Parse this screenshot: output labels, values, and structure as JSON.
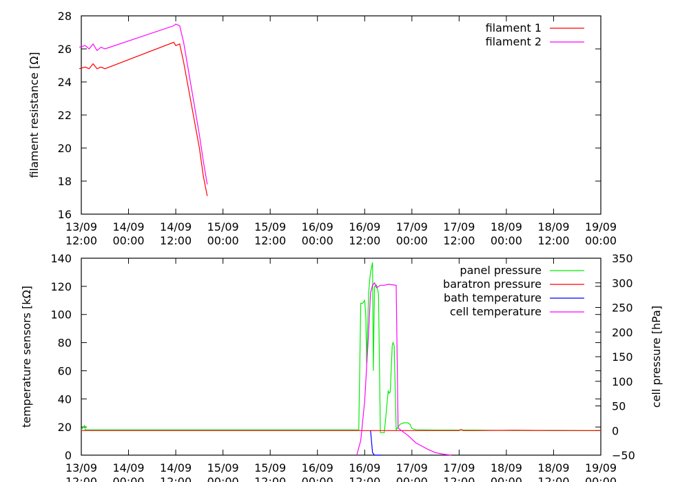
{
  "chart_data": [
    {
      "type": "line",
      "ylabel": "filament resistance [Ω]",
      "xlabel": "",
      "ylim": [
        16,
        28
      ],
      "yticks": [
        "16",
        "18",
        "20",
        "22",
        "24",
        "26",
        "28"
      ],
      "xlim_hours": [
        0,
        132
      ],
      "xticks": [
        {
          "date": "13/09",
          "time": "12:00"
        },
        {
          "date": "14/09",
          "time": "00:00"
        },
        {
          "date": "14/09",
          "time": "12:00"
        },
        {
          "date": "15/09",
          "time": "00:00"
        },
        {
          "date": "15/09",
          "time": "12:00"
        },
        {
          "date": "16/09",
          "time": "00:00"
        },
        {
          "date": "16/09",
          "time": "12:00"
        },
        {
          "date": "17/09",
          "time": "00:00"
        },
        {
          "date": "17/09",
          "time": "12:00"
        },
        {
          "date": "18/09",
          "time": "00:00"
        },
        {
          "date": "18/09",
          "time": "12:00"
        },
        {
          "date": "19/09",
          "time": "00:00"
        }
      ],
      "legend_position": "top-right",
      "series": [
        {
          "name": "filament 1",
          "color": "#ff0000",
          "x": [
            -0.5,
            1,
            2,
            3,
            4,
            5,
            6,
            23.5,
            24,
            25,
            26,
            30,
            31,
            32
          ],
          "y": [
            24.8,
            24.9,
            24.8,
            25.1,
            24.8,
            24.9,
            24.8,
            26.4,
            26.2,
            26.3,
            25.2,
            20.0,
            18.3,
            17.1
          ]
        },
        {
          "name": "filament 2",
          "color": "#ff00ff",
          "x": [
            -0.5,
            1,
            2,
            3,
            4,
            5,
            6,
            23.5,
            24,
            25,
            26,
            30,
            31,
            32
          ],
          "y": [
            26.1,
            26.2,
            26.0,
            26.3,
            25.9,
            26.1,
            26.0,
            27.4,
            27.5,
            27.4,
            26.4,
            20.8,
            19.2,
            17.8
          ]
        }
      ]
    },
    {
      "type": "line",
      "ylabel": "temperature sensors [kΩ]",
      "y2label": "cell pressure [hPa]",
      "xlabel": "",
      "ylim": [
        0,
        140
      ],
      "y2lim": [
        -50,
        350
      ],
      "yticks": [
        "0",
        "20",
        "40",
        "60",
        "80",
        "100",
        "120",
        "140"
      ],
      "y2ticks": [
        "−50",
        "0",
        "50",
        "100",
        "150",
        "200",
        "250",
        "300",
        "350"
      ],
      "xlim_hours": [
        0,
        132
      ],
      "xticks": [
        {
          "date": "13/09",
          "time": "12:00"
        },
        {
          "date": "14/09",
          "time": "00:00"
        },
        {
          "date": "14/09",
          "time": "12:00"
        },
        {
          "date": "15/09",
          "time": "00:00"
        },
        {
          "date": "15/09",
          "time": "12:00"
        },
        {
          "date": "16/09",
          "time": "00:00"
        },
        {
          "date": "16/09",
          "time": "12:00"
        },
        {
          "date": "17/09",
          "time": "00:00"
        },
        {
          "date": "17/09",
          "time": "12:00"
        },
        {
          "date": "18/09",
          "time": "00:00"
        },
        {
          "date": "18/09",
          "time": "12:00"
        },
        {
          "date": "19/09",
          "time": "00:00"
        }
      ],
      "legend_position": "top-right",
      "series": [
        {
          "name": "panel pressure",
          "color": "#00ee00",
          "x": [
            0,
            0.8,
            1,
            70,
            70.5,
            71,
            71.5,
            72,
            72.3,
            72.5,
            73,
            73.3,
            73.5,
            74,
            74.2,
            74.5,
            75,
            75.5,
            76,
            77,
            78,
            78.2,
            78.5,
            79,
            79.2,
            79.5,
            80,
            80.5,
            81,
            82,
            83,
            83.5,
            84,
            85,
            90,
            100,
            110,
            120,
            130,
            132
          ],
          "y": [
            18,
            21,
            18,
            18,
            18,
            108,
            108,
            110,
            98,
            65,
            115,
            125,
            130,
            137,
            60,
            120,
            121,
            115,
            16,
            16,
            46,
            44,
            45,
            78,
            80,
            78,
            18,
            20,
            22,
            23,
            23,
            22,
            19,
            18,
            17.8,
            17.8,
            17.5,
            17.6,
            17.5,
            17.5
          ]
        },
        {
          "name": "baratron pressure",
          "color": "#ff0000",
          "x": [
            0,
            1,
            24,
            28,
            96,
            96.2,
            96.5,
            96.8,
            97,
            100,
            110,
            120,
            130,
            132
          ],
          "y": [
            0,
            0,
            0,
            0,
            0,
            1,
            2,
            1,
            0,
            0,
            0.5,
            0,
            0,
            0
          ]
        },
        {
          "name": "bath temperature",
          "color": "#0000ff",
          "x": [
            73.5,
            74,
            74.5,
            75,
            75.5,
            76,
            76.3
          ],
          "y": [
            0,
            -45,
            -50,
            -50,
            -50,
            -50,
            -50
          ]
        },
        {
          "name": "cell temperature",
          "color": "#ff00ff",
          "x": [
            70,
            71,
            72,
            73,
            73.5,
            74,
            74.5,
            75,
            76,
            77,
            77.5,
            78,
            79,
            80,
            80.5,
            81,
            83,
            85,
            88,
            90,
            92,
            94
          ],
          "y": [
            -50,
            -20,
            60,
            200,
            280,
            295,
            300,
            290,
            295,
            295,
            296,
            297,
            296,
            295,
            5,
            2,
            -10,
            -25,
            -38,
            -45,
            -48,
            -50
          ]
        }
      ]
    }
  ]
}
